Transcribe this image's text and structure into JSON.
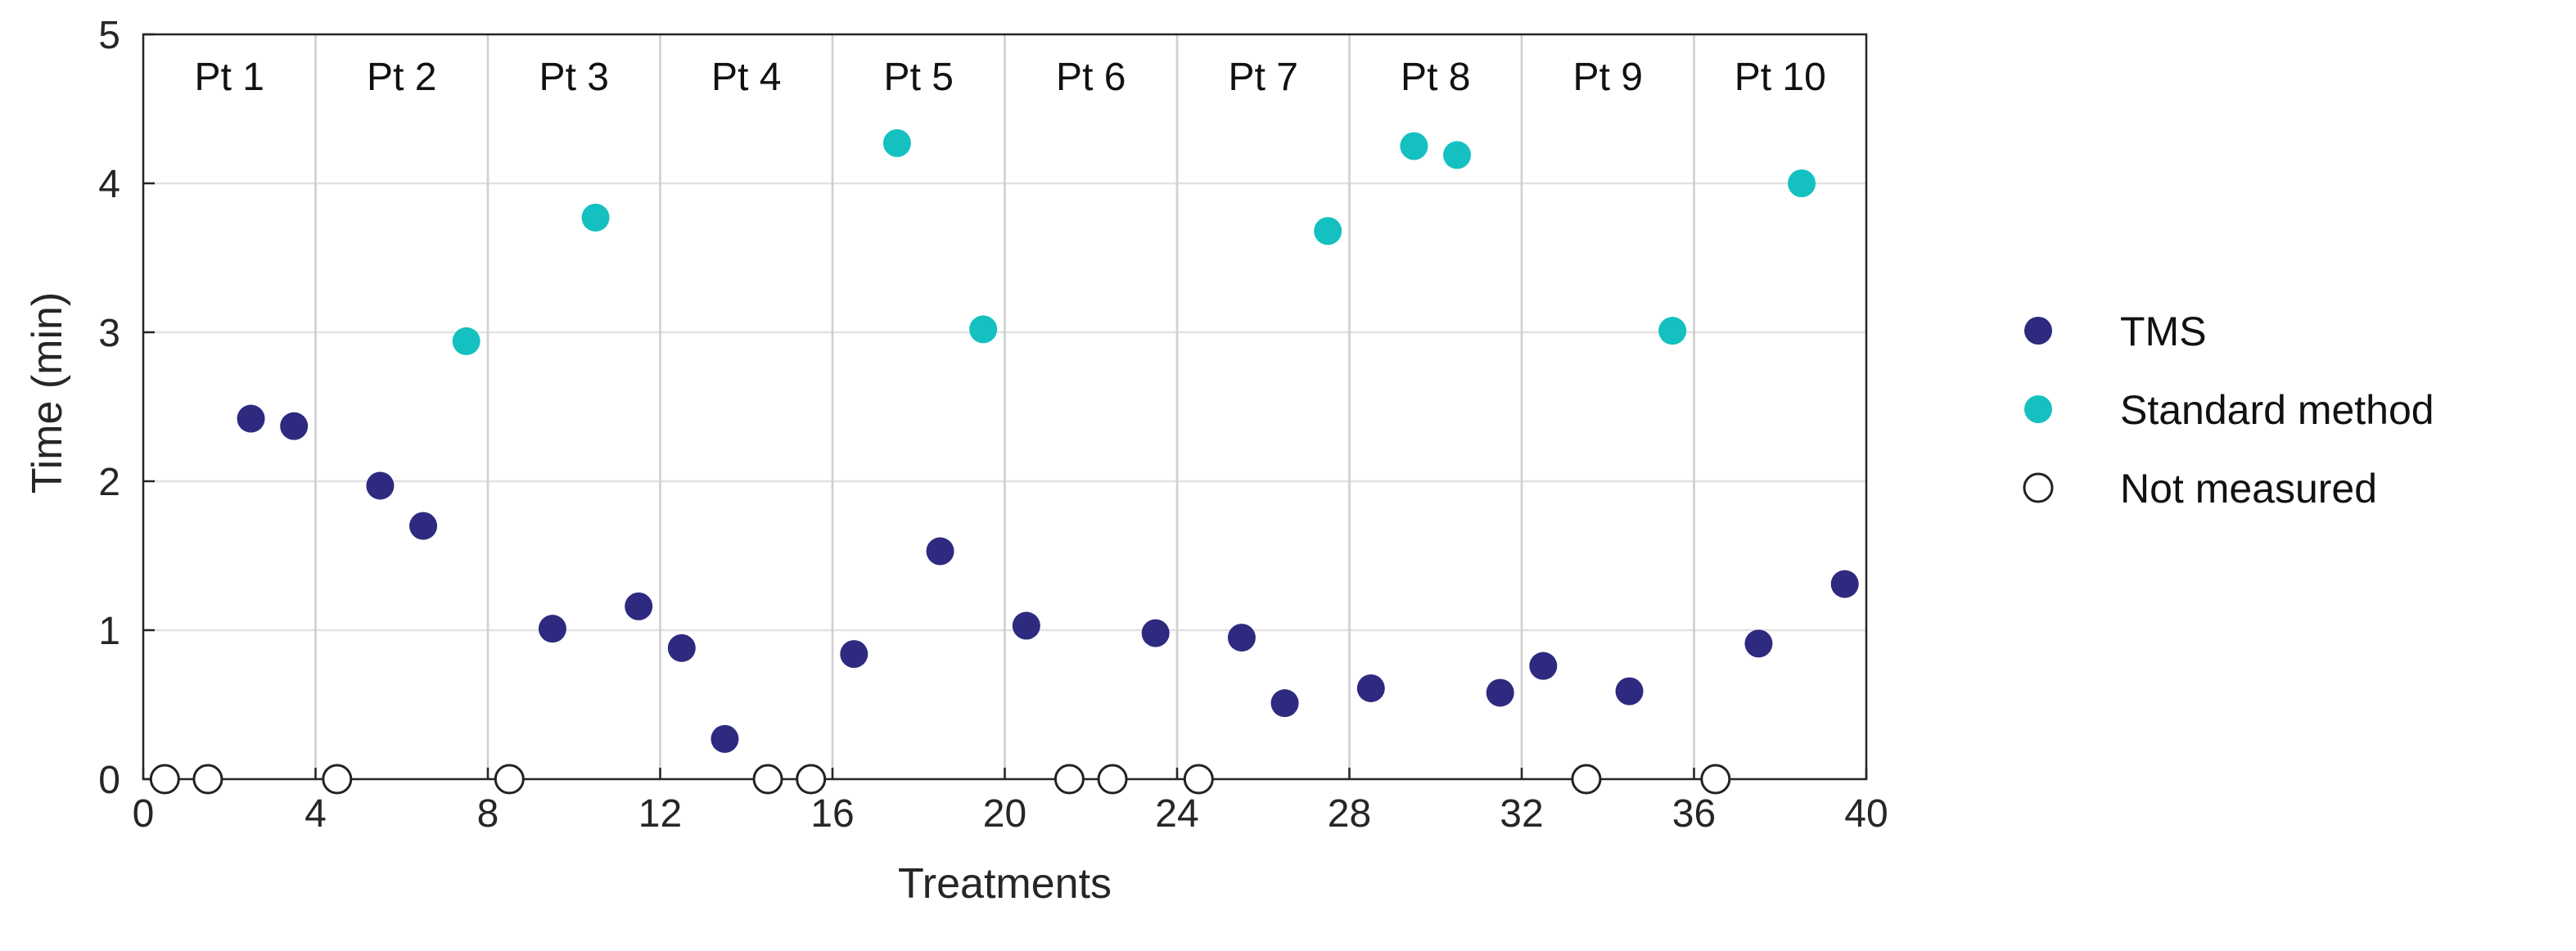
{
  "chart_data": {
    "type": "scatter",
    "xlabel": "Treatments",
    "ylabel": "Time (min)",
    "xlim": [
      0,
      40
    ],
    "ylim": [
      0,
      5
    ],
    "xticks": [
      0,
      4,
      8,
      12,
      16,
      20,
      24,
      28,
      32,
      36,
      40
    ],
    "yticks": [
      0,
      1,
      2,
      3,
      4,
      5
    ],
    "grid": true,
    "legend_position": "right",
    "groups": [
      {
        "label": "Pt 1",
        "start": 0,
        "end": 4
      },
      {
        "label": "Pt 2",
        "start": 4,
        "end": 8
      },
      {
        "label": "Pt 3",
        "start": 8,
        "end": 12
      },
      {
        "label": "Pt 4",
        "start": 12,
        "end": 16
      },
      {
        "label": "Pt 5",
        "start": 16,
        "end": 20
      },
      {
        "label": "Pt 6",
        "start": 20,
        "end": 24
      },
      {
        "label": "Pt 7",
        "start": 24,
        "end": 28
      },
      {
        "label": "Pt 8",
        "start": 28,
        "end": 32
      },
      {
        "label": "Pt 9",
        "start": 32,
        "end": 36
      },
      {
        "label": "Pt 10",
        "start": 36,
        "end": 40
      }
    ],
    "series": [
      {
        "name": "TMS",
        "color": "#2e2a80",
        "marker": "filled",
        "points": [
          {
            "x": 2.5,
            "y": 2.42
          },
          {
            "x": 3.5,
            "y": 2.37
          },
          {
            "x": 5.5,
            "y": 1.97
          },
          {
            "x": 6.5,
            "y": 1.7
          },
          {
            "x": 9.5,
            "y": 1.01
          },
          {
            "x": 11.5,
            "y": 1.16
          },
          {
            "x": 12.5,
            "y": 0.88
          },
          {
            "x": 13.5,
            "y": 0.27
          },
          {
            "x": 16.5,
            "y": 0.84
          },
          {
            "x": 18.5,
            "y": 1.53
          },
          {
            "x": 20.5,
            "y": 1.03
          },
          {
            "x": 23.5,
            "y": 0.98
          },
          {
            "x": 25.5,
            "y": 0.95
          },
          {
            "x": 26.5,
            "y": 0.51
          },
          {
            "x": 28.5,
            "y": 0.61
          },
          {
            "x": 31.5,
            "y": 0.58
          },
          {
            "x": 32.5,
            "y": 0.76
          },
          {
            "x": 34.5,
            "y": 0.59
          },
          {
            "x": 37.5,
            "y": 0.91
          },
          {
            "x": 39.5,
            "y": 1.31
          }
        ]
      },
      {
        "name": "Standard method",
        "color": "#14c0c0",
        "marker": "filled",
        "points": [
          {
            "x": 7.5,
            "y": 2.94
          },
          {
            "x": 10.5,
            "y": 3.77
          },
          {
            "x": 17.5,
            "y": 4.27
          },
          {
            "x": 19.5,
            "y": 3.02
          },
          {
            "x": 27.5,
            "y": 3.68
          },
          {
            "x": 29.5,
            "y": 4.25
          },
          {
            "x": 30.5,
            "y": 4.19
          },
          {
            "x": 35.5,
            "y": 3.01
          },
          {
            "x": 38.5,
            "y": 4.0
          }
        ]
      },
      {
        "name": "Not measured",
        "color": "#222222",
        "marker": "open",
        "points": [
          {
            "x": 0.5,
            "y": 0
          },
          {
            "x": 1.5,
            "y": 0
          },
          {
            "x": 4.5,
            "y": 0
          },
          {
            "x": 8.5,
            "y": 0
          },
          {
            "x": 14.5,
            "y": 0
          },
          {
            "x": 15.5,
            "y": 0
          },
          {
            "x": 21.5,
            "y": 0
          },
          {
            "x": 22.5,
            "y": 0
          },
          {
            "x": 24.5,
            "y": 0
          },
          {
            "x": 33.5,
            "y": 0
          },
          {
            "x": 36.5,
            "y": 0
          }
        ]
      }
    ]
  }
}
